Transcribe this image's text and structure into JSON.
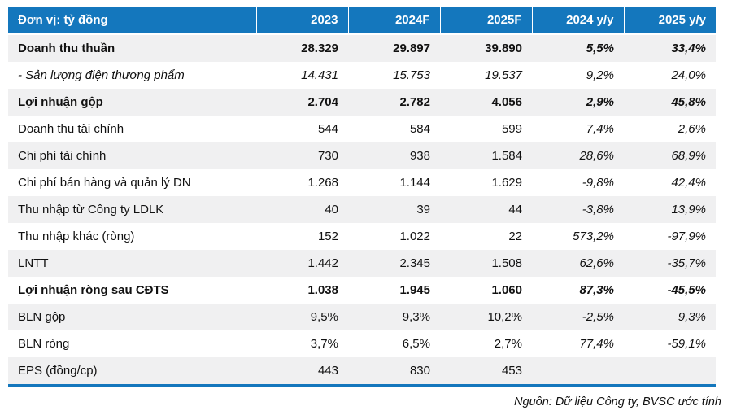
{
  "table": {
    "unit_label": "Đơn vị: tỷ đồng",
    "columns": [
      "2023",
      "2024F",
      "2025F",
      "2024 y/y",
      "2025 y/y"
    ],
    "rows": [
      {
        "label": "Doanh thu thuần",
        "values": [
          "28.329",
          "29.897",
          "39.890",
          "5,5%",
          "33,4%"
        ],
        "style": "bold"
      },
      {
        "label": "- Sản lượng điện thương phẩm",
        "values": [
          "14.431",
          "15.753",
          "19.537",
          "9,2%",
          "24,0%"
        ],
        "style": "italic"
      },
      {
        "label": "Lợi nhuận gộp",
        "values": [
          "2.704",
          "2.782",
          "4.056",
          "2,9%",
          "45,8%"
        ],
        "style": "bold"
      },
      {
        "label": "Doanh thu tài chính",
        "values": [
          "544",
          "584",
          "599",
          "7,4%",
          "2,6%"
        ],
        "style": "normal"
      },
      {
        "label": "Chi phí tài chính",
        "values": [
          "730",
          "938",
          "1.584",
          "28,6%",
          "68,9%"
        ],
        "style": "normal"
      },
      {
        "label": "Chi phí bán hàng và quản lý DN",
        "values": [
          "1.268",
          "1.144",
          "1.629",
          "-9,8%",
          "42,4%"
        ],
        "style": "normal"
      },
      {
        "label": "Thu nhập từ Công ty LDLK",
        "values": [
          "40",
          "39",
          "44",
          "-3,8%",
          "13,9%"
        ],
        "style": "normal"
      },
      {
        "label": "Thu nhập khác (ròng)",
        "values": [
          "152",
          "1.022",
          "22",
          "573,2%",
          "-97,9%"
        ],
        "style": "normal"
      },
      {
        "label": "LNTT",
        "values": [
          "1.442",
          "2.345",
          "1.508",
          "62,6%",
          "-35,7%"
        ],
        "style": "normal"
      },
      {
        "label": "Lợi nhuận ròng sau CĐTS",
        "values": [
          "1.038",
          "1.945",
          "1.060",
          "87,3%",
          "-45,5%"
        ],
        "style": "bold"
      },
      {
        "label": "BLN gộp",
        "values": [
          "9,5%",
          "9,3%",
          "10,2%",
          "-2,5%",
          "9,3%"
        ],
        "style": "normal"
      },
      {
        "label": "BLN ròng",
        "values": [
          "3,7%",
          "6,5%",
          "2,7%",
          "77,4%",
          "-59,1%"
        ],
        "style": "normal"
      },
      {
        "label": "EPS (đồng/cp)",
        "values": [
          "443",
          "830",
          "453",
          "",
          ""
        ],
        "style": "normal"
      }
    ],
    "source_note": "Nguồn: Dữ liệu Công ty, BVSC ước tính"
  },
  "colors": {
    "header_bg": "#1477BD",
    "stripe_bg": "#F0F0F1",
    "bottom_rule": "#1477BD",
    "header_text": "#FFFFFF",
    "body_text": "#111111"
  }
}
